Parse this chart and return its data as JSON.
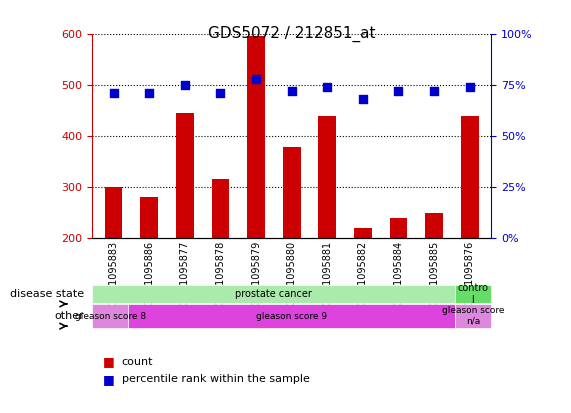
{
  "title": "GDS5072 / 212851_at",
  "samples": [
    "GSM1095883",
    "GSM1095886",
    "GSM1095877",
    "GSM1095878",
    "GSM1095879",
    "GSM1095880",
    "GSM1095881",
    "GSM1095882",
    "GSM1095884",
    "GSM1095885",
    "GSM1095876"
  ],
  "counts": [
    300,
    280,
    445,
    315,
    595,
    378,
    438,
    220,
    240,
    248,
    438
  ],
  "percentiles": [
    71,
    71,
    75,
    71,
    78,
    72,
    74,
    68,
    72,
    72,
    74
  ],
  "ylim_left": [
    200,
    600
  ],
  "ylim_right": [
    0,
    100
  ],
  "yticks_left": [
    200,
    300,
    400,
    500,
    600
  ],
  "yticks_right": [
    0,
    25,
    50,
    75,
    100
  ],
  "bar_color": "#cc0000",
  "dot_color": "#0000cc",
  "disease_state_labels": [
    {
      "label": "prostate cancer",
      "start": 0,
      "end": 10,
      "color": "#aaeaaa"
    },
    {
      "label": "contro\nl",
      "start": 10,
      "end": 11,
      "color": "#66dd66"
    }
  ],
  "other_labels": [
    {
      "label": "gleason score 8",
      "start": 0,
      "end": 1,
      "color": "#dd88dd"
    },
    {
      "label": "gleason score 9",
      "start": 1,
      "end": 10,
      "color": "#dd44dd"
    },
    {
      "label": "gleason score\nn/a",
      "start": 10,
      "end": 11,
      "color": "#dd88dd"
    }
  ],
  "left_axis_color": "#cc0000",
  "right_axis_color": "#0000cc",
  "plot_bg_color": "#ffffff"
}
